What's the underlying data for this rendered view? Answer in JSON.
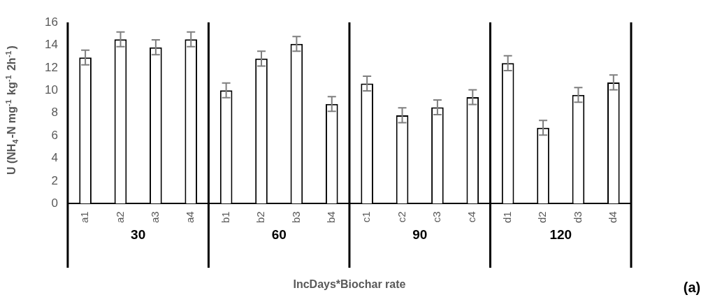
{
  "chart_data": {
    "type": "bar",
    "xlabel": "IncDays*Biochar rate",
    "ylabel": "U (NH$_{4}$-N mg$^{-1}$ kg$^{-1}$ 2h$^{-1}$)",
    "categories": [
      "a1",
      "a2",
      "a3",
      "a4",
      "b1",
      "b2",
      "b3",
      "b4",
      "c1",
      "c2",
      "c3",
      "c4",
      "d1",
      "d2",
      "d3",
      "d4"
    ],
    "values": [
      12.9,
      14.5,
      13.8,
      14.5,
      10.0,
      12.8,
      14.1,
      8.8,
      10.6,
      7.8,
      8.5,
      9.4,
      12.4,
      6.7,
      9.6,
      10.7
    ],
    "errors": [
      0.65,
      0.65,
      0.65,
      0.65,
      0.65,
      0.65,
      0.65,
      0.65,
      0.65,
      0.65,
      0.65,
      0.65,
      0.65,
      0.65,
      0.65,
      0.65
    ],
    "color": "#ffffff",
    "ylim": [
      0,
      16
    ],
    "yticks": [
      0,
      2,
      4,
      6,
      8,
      10,
      12,
      14,
      16
    ],
    "grid": false,
    "legend": false,
    "annotations": [
      "30",
      "60",
      "90",
      "120",
      "(a)"
    ]
  }
}
